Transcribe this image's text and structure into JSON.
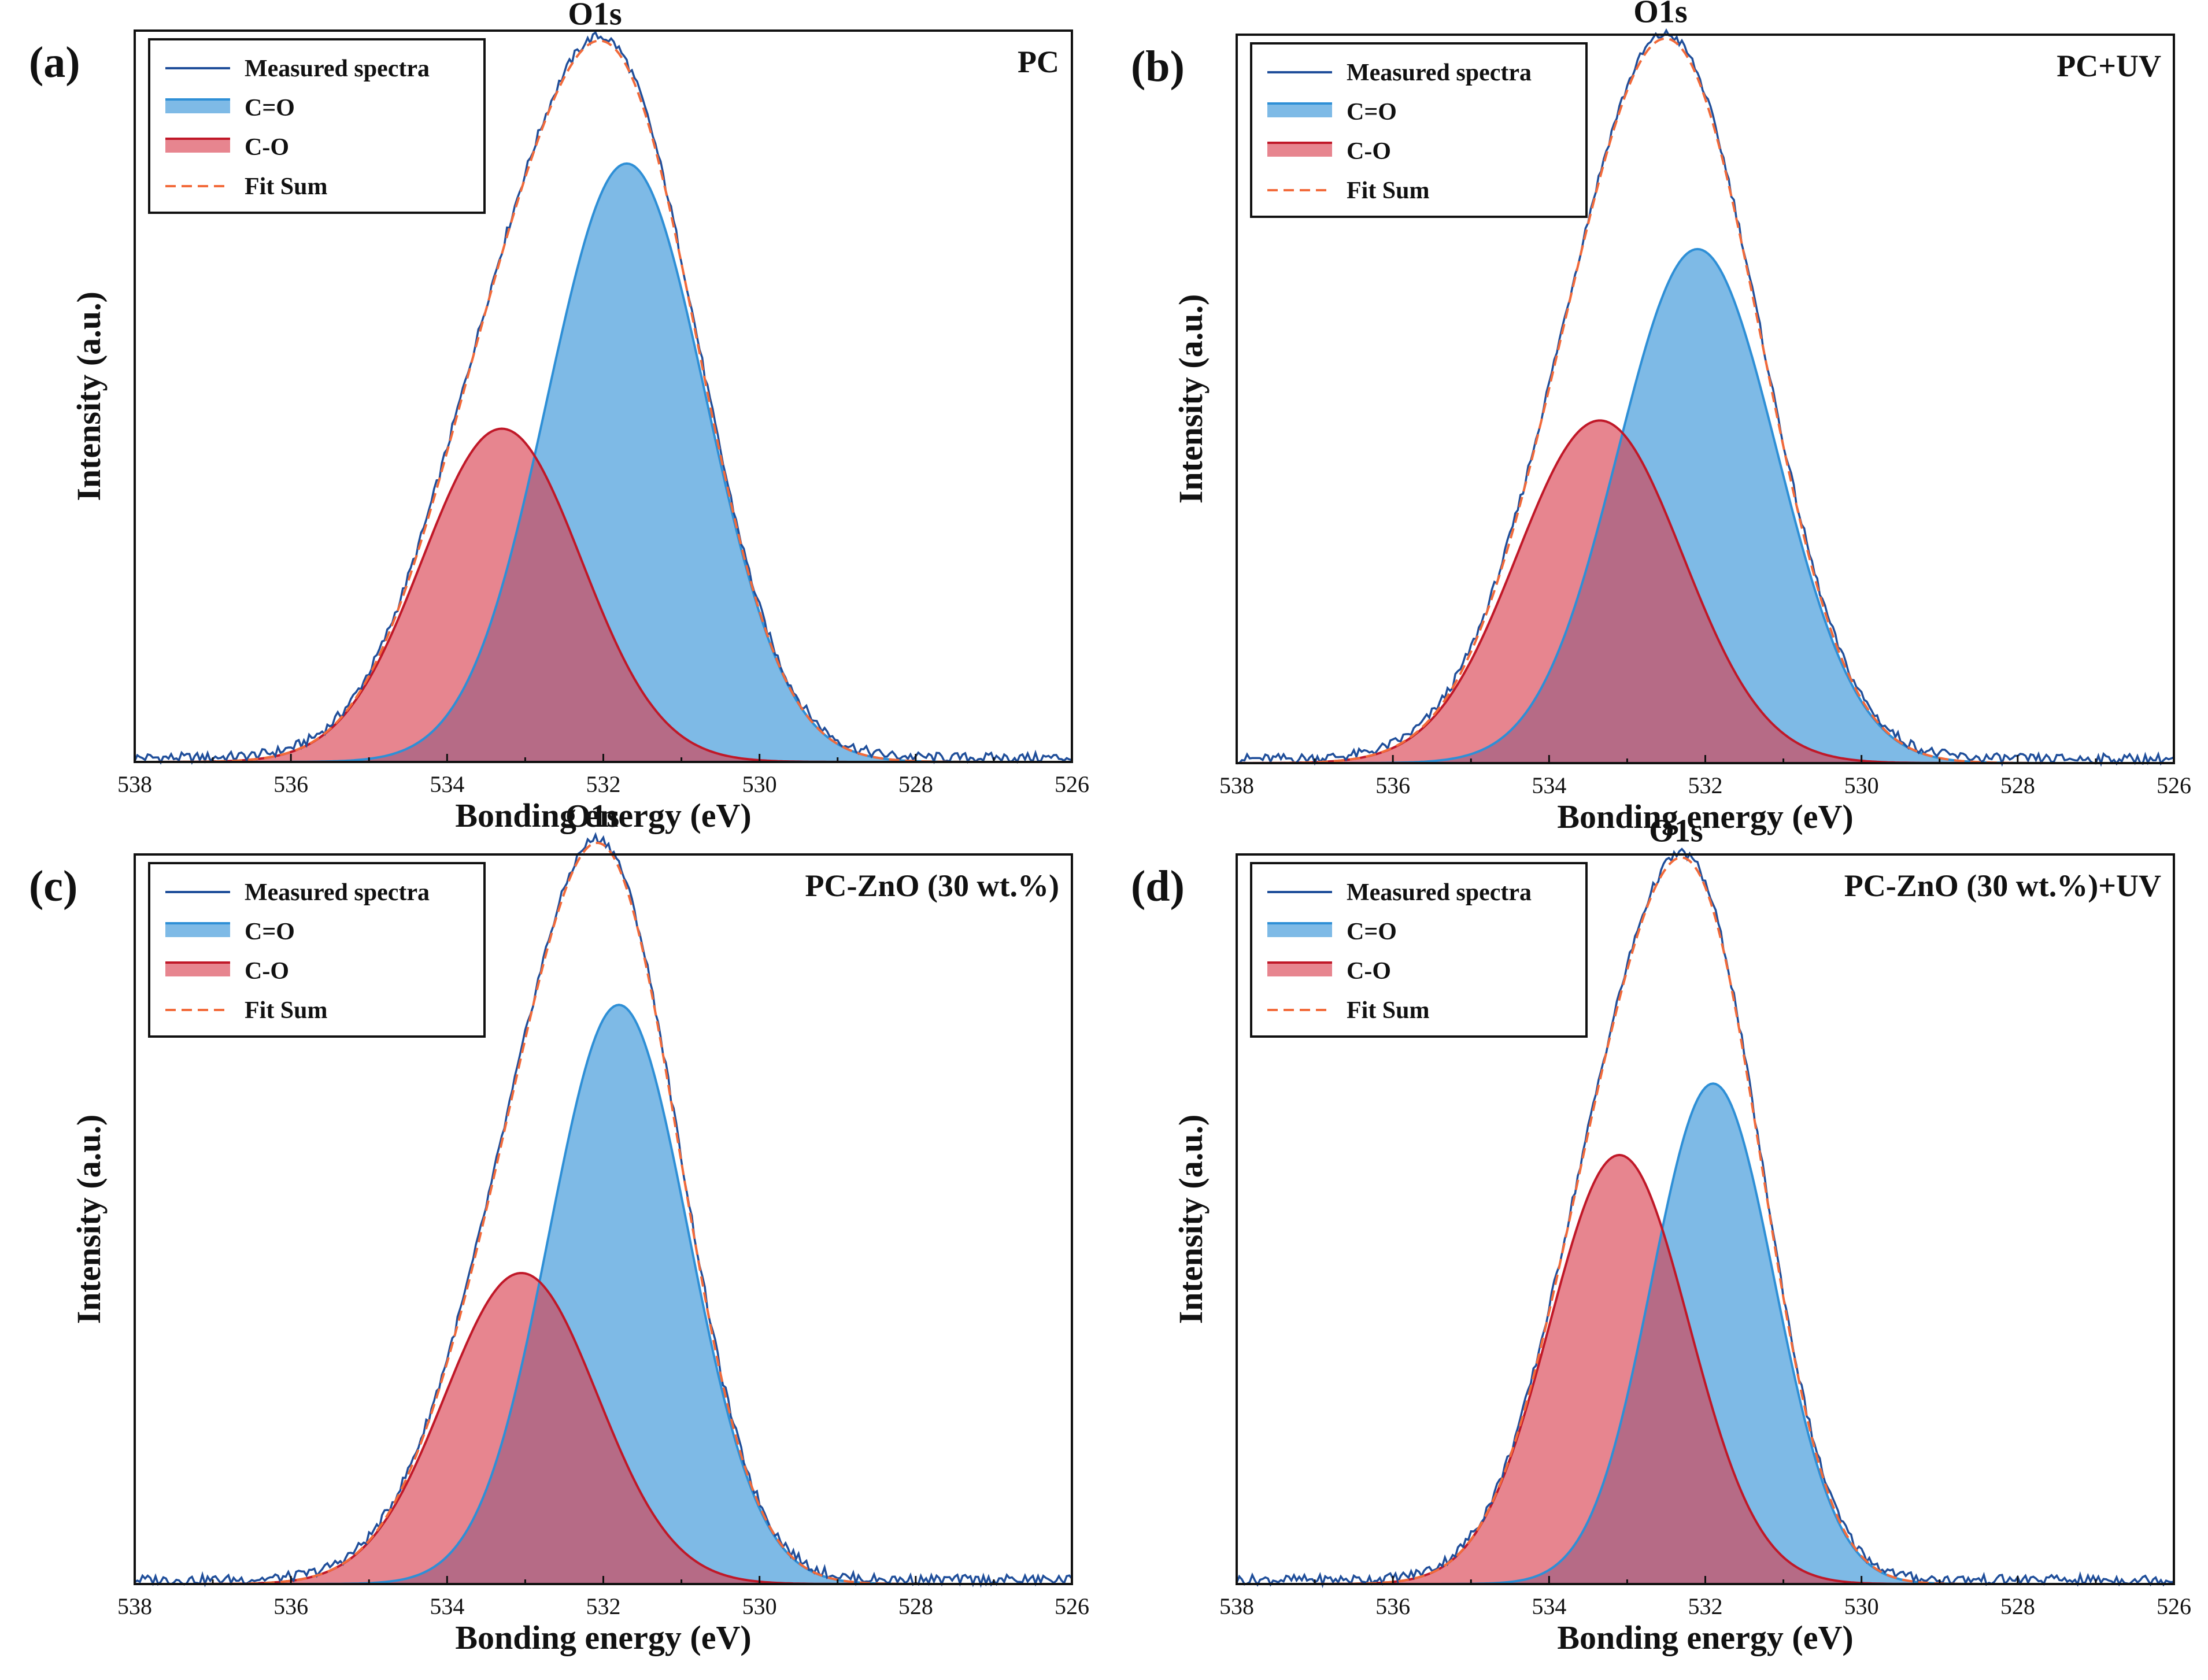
{
  "colors": {
    "measured": "#1f4e9a",
    "co_double": "#2e8fd6",
    "co_single": "#d93a4a",
    "fit": "#f26a3a"
  },
  "chart_data": [
    {
      "type": "line",
      "panel_label": "(a)",
      "title": "PC",
      "annotation": "O1s",
      "xlabel": "Bonding energy (eV)",
      "ylabel": "Intensity (a.u.)",
      "xlim": [
        538,
        526
      ],
      "x_ticks": [
        538,
        536,
        534,
        532,
        530,
        528,
        526
      ],
      "ylim": [
        0,
        1
      ],
      "legend": [
        "Measured spectra",
        "C=O",
        "C-O",
        "Fit Sum"
      ],
      "legend_position": "top-left",
      "peaks": [
        {
          "name": "C=O",
          "center": 531.7,
          "fwhm": 2.4,
          "height": 0.835
        },
        {
          "name": "C-O",
          "center": 533.3,
          "fwhm": 2.4,
          "height": 0.465
        }
      ]
    },
    {
      "type": "line",
      "panel_label": "(b)",
      "title": "PC+UV",
      "annotation": "O1s",
      "xlabel": "Bonding energy (eV)",
      "ylabel": "Intensity (a.u.)",
      "xlim": [
        538,
        526
      ],
      "x_ticks": [
        538,
        536,
        534,
        532,
        530,
        528,
        526
      ],
      "ylim": [
        0,
        1
      ],
      "legend": [
        "Measured spectra",
        "C=O",
        "C-O",
        "Fit Sum"
      ],
      "legend_position": "top-left",
      "peaks": [
        {
          "name": "C=O",
          "center": 532.1,
          "fwhm": 2.4,
          "height": 0.72
        },
        {
          "name": "C-O",
          "center": 533.35,
          "fwhm": 2.5,
          "height": 0.48
        }
      ]
    },
    {
      "type": "line",
      "panel_label": "(c)",
      "title": "PC-ZnO (30 wt.%)",
      "annotation": "O1s",
      "xlabel": "Bonding energy (eV)",
      "ylabel": "Intensity (a.u.)",
      "xlim": [
        538,
        526
      ],
      "x_ticks": [
        538,
        536,
        534,
        532,
        530,
        528,
        526
      ],
      "ylim": [
        0,
        1
      ],
      "legend": [
        "Measured spectra",
        "C=O",
        "C-O",
        "Fit Sum"
      ],
      "legend_position": "top-left",
      "peaks": [
        {
          "name": "C=O",
          "center": 531.8,
          "fwhm": 2.1,
          "height": 0.81
        },
        {
          "name": "C-O",
          "center": 533.05,
          "fwhm": 2.3,
          "height": 0.435
        }
      ]
    },
    {
      "type": "line",
      "panel_label": "(d)",
      "title": "PC-ZnO (30 wt.%)+UV",
      "annotation": "O1s",
      "xlabel": "Bonding energy (eV)",
      "ylabel": "Intensity (a.u.)",
      "xlim": [
        538,
        526
      ],
      "x_ticks": [
        538,
        536,
        534,
        532,
        530,
        528,
        526
      ],
      "ylim": [
        0,
        1
      ],
      "legend": [
        "Measured spectra",
        "C=O",
        "C-O",
        "Fit Sum"
      ],
      "legend_position": "top-left",
      "peaks": [
        {
          "name": "C=O",
          "center": 531.9,
          "fwhm": 1.85,
          "height": 0.7
        },
        {
          "name": "C-O",
          "center": 533.1,
          "fwhm": 2.1,
          "height": 0.6
        }
      ]
    }
  ]
}
